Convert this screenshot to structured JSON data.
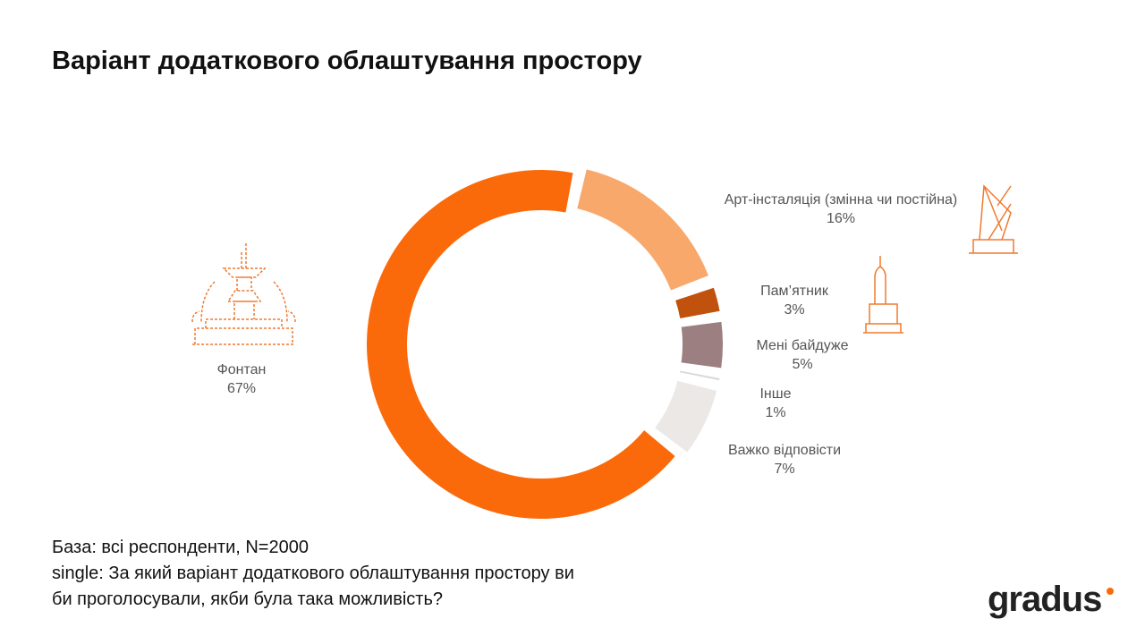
{
  "chart_data": {
    "type": "donut",
    "title": "Варіант додаткового облаштування простору",
    "categories": [
      "Арт-інсталяція (змінна чи постійна)",
      "Пам’ятник",
      "Мені байдуже",
      "Інше",
      "Важко відповісти",
      "Фонтан"
    ],
    "values": [
      16,
      3,
      5,
      1,
      7,
      67
    ],
    "value_labels": [
      "16%",
      "3%",
      "5%",
      "1%",
      "7%",
      "67%"
    ],
    "colors": [
      "#f9a86c",
      "#c0520e",
      "#9c7f80",
      "#dcd8d4",
      "#ebe8e5",
      "#fb6a0a"
    ]
  },
  "notes": [
    "База: всі респонденти, N=2000",
    "single: За який варіант додаткового облаштування простору ви",
    "би проголосували, якби була така можливість?"
  ],
  "logo": "gradus"
}
